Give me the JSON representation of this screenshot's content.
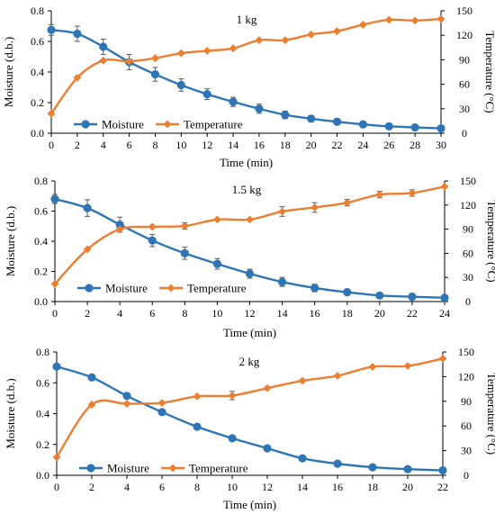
{
  "colors": {
    "moisture": "#2E75B6",
    "temperature": "#ED7D31",
    "axis": "#000000",
    "errorbar": "#595959"
  },
  "chart_data": [
    {
      "type": "line",
      "title": "1 kg",
      "xlabel": "Time (min)",
      "ylabel": "Moisture (d.b.)",
      "y2label": "Temperature (°C)",
      "xlim": [
        0,
        30
      ],
      "ylim": [
        0,
        0.8
      ],
      "y2lim": [
        0,
        150
      ],
      "xticks": [
        0,
        2,
        4,
        6,
        8,
        10,
        12,
        14,
        16,
        18,
        20,
        22,
        24,
        26,
        28,
        30
      ],
      "yticks": [
        "0.0",
        "0.2",
        "0.4",
        "0.6",
        "0.8"
      ],
      "y2ticks": [
        "0",
        "30",
        "60",
        "90",
        "120",
        "150"
      ],
      "legend": "lower-left",
      "series": [
        {
          "name": "Moisture",
          "axis": "left",
          "marker": "circle",
          "color": "#2E75B6",
          "x": [
            0,
            2,
            4,
            6,
            8,
            10,
            12,
            14,
            16,
            18,
            20,
            22,
            24,
            26,
            28,
            30
          ],
          "y": [
            0.675,
            0.65,
            0.565,
            0.465,
            0.385,
            0.315,
            0.255,
            0.205,
            0.16,
            0.12,
            0.095,
            0.075,
            0.058,
            0.045,
            0.038,
            0.032
          ],
          "err": [
            0.035,
            0.05,
            0.05,
            0.05,
            0.045,
            0.04,
            0.035,
            0.03,
            0.03,
            0.025,
            0.02,
            0.02,
            0.018,
            0.015,
            0.012,
            0.01
          ]
        },
        {
          "name": "Temperature",
          "axis": "right",
          "marker": "diamond",
          "color": "#ED7D31",
          "x": [
            0,
            2,
            4,
            6,
            8,
            10,
            12,
            14,
            16,
            18,
            20,
            22,
            24,
            26,
            28,
            30
          ],
          "y": [
            24,
            68,
            89,
            88,
            92,
            98,
            101,
            104,
            114,
            114,
            121,
            125,
            133,
            139,
            138,
            140
          ]
        }
      ]
    },
    {
      "type": "line",
      "title": "1.5 kg",
      "xlabel": "Time (min)",
      "ylabel": "Moisture (d.b.)",
      "y2label": "Temperature (°C)",
      "xlim": [
        0,
        24
      ],
      "ylim": [
        0,
        0.8
      ],
      "y2lim": [
        0,
        150
      ],
      "xticks": [
        0,
        2,
        4,
        6,
        8,
        10,
        12,
        14,
        16,
        18,
        20,
        22,
        24
      ],
      "yticks": [
        "0.0",
        "0.2",
        "0.4",
        "0.6",
        "0.8"
      ],
      "y2ticks": [
        "0",
        "30",
        "60",
        "90",
        "120",
        "150"
      ],
      "legend": "lower-left",
      "series": [
        {
          "name": "Moisture",
          "axis": "left",
          "marker": "circle",
          "color": "#2E75B6",
          "x": [
            0,
            2,
            4,
            6,
            8,
            10,
            12,
            14,
            16,
            18,
            20,
            22,
            24
          ],
          "y": [
            0.68,
            0.62,
            0.51,
            0.405,
            0.32,
            0.25,
            0.185,
            0.13,
            0.09,
            0.062,
            0.04,
            0.032,
            0.025
          ],
          "err": [
            0.03,
            0.055,
            0.05,
            0.04,
            0.04,
            0.035,
            0.03,
            0.03,
            0.025,
            0.02,
            0.018,
            0.02,
            0.01
          ]
        },
        {
          "name": "Temperature",
          "axis": "right",
          "marker": "diamond",
          "color": "#ED7D31",
          "x": [
            0,
            2,
            4,
            6,
            8,
            10,
            12,
            14,
            16,
            18,
            20,
            22,
            24
          ],
          "y": [
            22,
            65,
            90,
            93,
            94,
            102,
            102,
            112,
            117,
            123,
            133,
            135,
            143
          ],
          "err": [
            0,
            0,
            0,
            0,
            4,
            0,
            0,
            6,
            6,
            4,
            4,
            4,
            0
          ]
        }
      ]
    },
    {
      "type": "line",
      "title": "2 kg",
      "xlabel": "Time (min)",
      "ylabel": "Moisture (d.b.)",
      "y2label": "Temperature (°C)",
      "xlim": [
        0,
        22
      ],
      "ylim": [
        0,
        0.8
      ],
      "y2lim": [
        0,
        150
      ],
      "xticks": [
        0,
        2,
        4,
        6,
        8,
        10,
        12,
        14,
        16,
        18,
        20,
        22
      ],
      "yticks": [
        "0.0",
        "0.2",
        "0.4",
        "0.6",
        "0.8"
      ],
      "y2ticks": [
        "0",
        "30",
        "60",
        "90",
        "120",
        "150"
      ],
      "legend": "lower-left",
      "series": [
        {
          "name": "Moisture",
          "axis": "left",
          "marker": "circle",
          "color": "#2E75B6",
          "x": [
            0,
            2,
            4,
            6,
            8,
            10,
            12,
            14,
            16,
            18,
            20,
            22
          ],
          "y": [
            0.705,
            0.635,
            0.515,
            0.41,
            0.315,
            0.24,
            0.175,
            0.11,
            0.075,
            0.052,
            0.04,
            0.032
          ]
        },
        {
          "name": "Temperature",
          "axis": "right",
          "marker": "diamond",
          "color": "#ED7D31",
          "x": [
            0,
            2,
            4,
            6,
            8,
            10,
            12,
            14,
            16,
            18,
            20,
            22
          ],
          "y": [
            22,
            86,
            87,
            88,
            96,
            97,
            106,
            115,
            121,
            132,
            133,
            142
          ],
          "err": [
            0,
            0,
            0,
            0,
            0,
            5,
            0,
            0,
            0,
            0,
            0,
            0
          ]
        }
      ]
    }
  ]
}
